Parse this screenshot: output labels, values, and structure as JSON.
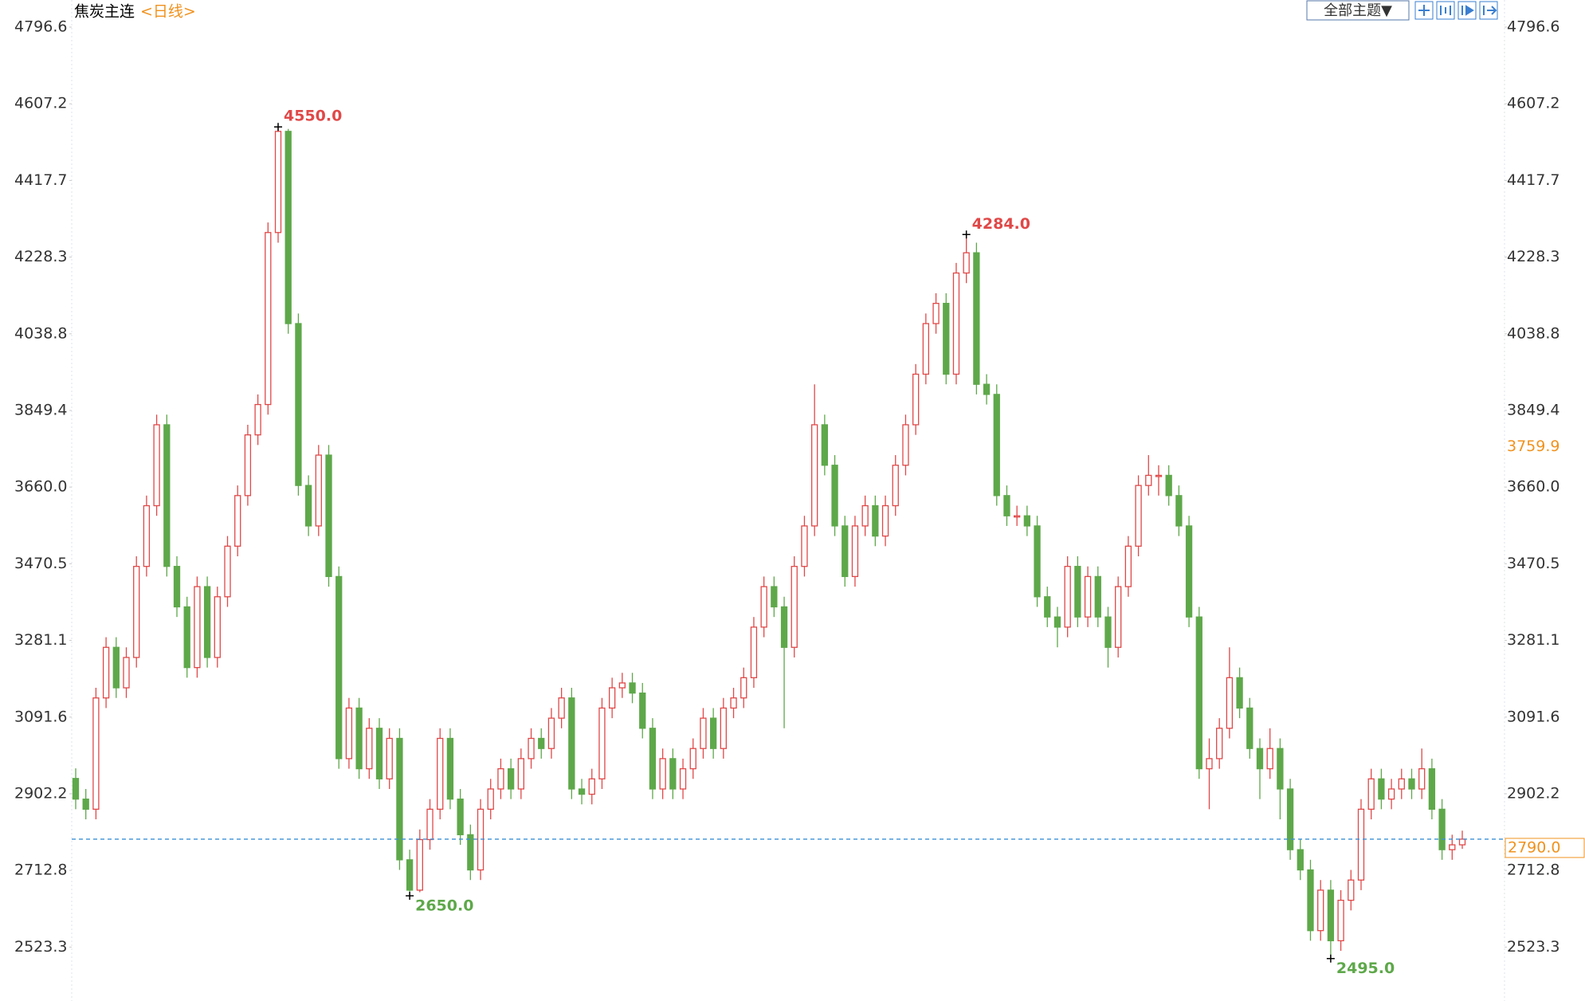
{
  "chart_data": {
    "type": "candlestick",
    "title": "焦炭主连",
    "subtitle": "<日线>",
    "theme_button": "全部主题▼",
    "up_color": "#e04848",
    "down_color": "#5ea84a",
    "price_line_color": "#3a8fd6",
    "label_color": "#f0921e",
    "ylim": [
      2390.1,
      4863.6
    ],
    "yticks": [
      4796.6,
      4607.2,
      4417.7,
      4228.3,
      4038.8,
      3849.4,
      {
        "value": 3660.0,
        "label": "3660.0"
      },
      3470.5,
      3281.1,
      3091.6,
      2902.2,
      2712.8,
      2523.3
    ],
    "current_price": {
      "value": 2790.0,
      "label": "2790.0"
    },
    "reference_price": 3759.9,
    "annotations": [
      {
        "value": 4550.0,
        "label": "4550.0"
      },
      {
        "value": 4284.0,
        "label": "4284.0"
      },
      {
        "value": 2650.0,
        "label": "2650.0"
      },
      {
        "value": 2495.0,
        "label": "2495.0"
      }
    ],
    "candles": [
      [
        2940,
        2965,
        2864,
        2889
      ],
      [
        2889,
        2914,
        2839,
        2864
      ],
      [
        2864,
        3164,
        2839,
        3139
      ],
      [
        3139,
        3289,
        3114,
        3264
      ],
      [
        3264,
        3289,
        3139,
        3164
      ],
      [
        3164,
        3264,
        3139,
        3239
      ],
      [
        3239,
        3489,
        3214,
        3464
      ],
      [
        3464,
        3639,
        3439,
        3614
      ],
      [
        3614,
        3839,
        3589,
        3814
      ],
      [
        3814,
        3839,
        3439,
        3464
      ],
      [
        3464,
        3489,
        3339,
        3364
      ],
      [
        3364,
        3389,
        3189,
        3214
      ],
      [
        3214,
        3439,
        3189,
        3414
      ],
      [
        3414,
        3439,
        3214,
        3239
      ],
      [
        3239,
        3414,
        3214,
        3389
      ],
      [
        3389,
        3539,
        3364,
        3514
      ],
      [
        3514,
        3664,
        3489,
        3639
      ],
      [
        3639,
        3814,
        3614,
        3789
      ],
      [
        3789,
        3889,
        3764,
        3864
      ],
      [
        3864,
        4314,
        3839,
        4289
      ],
      [
        4289,
        4550,
        4264,
        4539
      ],
      [
        4539,
        4545,
        4039,
        4064
      ],
      [
        4064,
        4089,
        3639,
        3664
      ],
      [
        3664,
        3689,
        3539,
        3564
      ],
      [
        3564,
        3764,
        3539,
        3739
      ],
      [
        3739,
        3764,
        3414,
        3439
      ],
      [
        3439,
        3464,
        2964,
        2989
      ],
      [
        2989,
        3139,
        2964,
        3114
      ],
      [
        3114,
        3139,
        2939,
        2964
      ],
      [
        2964,
        3089,
        2939,
        3064
      ],
      [
        3064,
        3089,
        2914,
        2939
      ],
      [
        2939,
        3064,
        2914,
        3039
      ],
      [
        3039,
        3064,
        2714,
        2739
      ],
      [
        2739,
        2764,
        2650,
        2664
      ],
      [
        2664,
        2814,
        2659,
        2789
      ],
      [
        2789,
        2889,
        2764,
        2864
      ],
      [
        2864,
        3064,
        2839,
        3039
      ],
      [
        3039,
        3064,
        2864,
        2889
      ],
      [
        2889,
        2914,
        2776,
        2801
      ],
      [
        2801,
        2826,
        2689,
        2714
      ],
      [
        2714,
        2889,
        2689,
        2864
      ],
      [
        2864,
        2939,
        2839,
        2914
      ],
      [
        2914,
        2989,
        2889,
        2964
      ],
      [
        2964,
        2989,
        2889,
        2914
      ],
      [
        2914,
        3014,
        2889,
        2989
      ],
      [
        2989,
        3064,
        2964,
        3039
      ],
      [
        3039,
        3064,
        2989,
        3014
      ],
      [
        3014,
        3114,
        2989,
        3089
      ],
      [
        3089,
        3164,
        3064,
        3139
      ],
      [
        3139,
        3164,
        2889,
        2914
      ],
      [
        2914,
        2939,
        2876,
        2901
      ],
      [
        2901,
        2964,
        2876,
        2939
      ],
      [
        2939,
        3139,
        2914,
        3114
      ],
      [
        3114,
        3189,
        3089,
        3164
      ],
      [
        3164,
        3201,
        3139,
        3176
      ],
      [
        3176,
        3201,
        3126,
        3151
      ],
      [
        3151,
        3176,
        3039,
        3064
      ],
      [
        3064,
        3089,
        2889,
        2914
      ],
      [
        2914,
        3014,
        2889,
        2989
      ],
      [
        2989,
        3014,
        2889,
        2914
      ],
      [
        2914,
        2989,
        2889,
        2964
      ],
      [
        2964,
        3039,
        2939,
        3014
      ],
      [
        3014,
        3114,
        2989,
        3089
      ],
      [
        3089,
        3114,
        2989,
        3014
      ],
      [
        3014,
        3139,
        2989,
        3114
      ],
      [
        3114,
        3164,
        3089,
        3139
      ],
      [
        3139,
        3214,
        3114,
        3189
      ],
      [
        3189,
        3339,
        3164,
        3314
      ],
      [
        3314,
        3439,
        3289,
        3414
      ],
      [
        3414,
        3439,
        3339,
        3364
      ],
      [
        3364,
        3389,
        3064,
        3264
      ],
      [
        3264,
        3489,
        3239,
        3464
      ],
      [
        3464,
        3589,
        3439,
        3564
      ],
      [
        3564,
        3914,
        3539,
        3814
      ],
      [
        3814,
        3839,
        3689,
        3714
      ],
      [
        3714,
        3739,
        3539,
        3564
      ],
      [
        3564,
        3589,
        3414,
        3439
      ],
      [
        3439,
        3589,
        3414,
        3564
      ],
      [
        3564,
        3639,
        3539,
        3614
      ],
      [
        3614,
        3639,
        3514,
        3539
      ],
      [
        3539,
        3639,
        3514,
        3614
      ],
      [
        3614,
        3739,
        3589,
        3714
      ],
      [
        3714,
        3839,
        3689,
        3814
      ],
      [
        3814,
        3964,
        3789,
        3939
      ],
      [
        3939,
        4089,
        3914,
        4064
      ],
      [
        4064,
        4139,
        4039,
        4114
      ],
      [
        4114,
        4139,
        3914,
        3939
      ],
      [
        3939,
        4214,
        3914,
        4189
      ],
      [
        4189,
        4284,
        4164,
        4239
      ],
      [
        4239,
        4264,
        3889,
        3914
      ],
      [
        3914,
        3939,
        3864,
        3889
      ],
      [
        3889,
        3914,
        3614,
        3639
      ],
      [
        3639,
        3664,
        3564,
        3589
      ],
      [
        3589,
        3614,
        3564,
        3589
      ],
      [
        3589,
        3614,
        3539,
        3564
      ],
      [
        3564,
        3589,
        3364,
        3389
      ],
      [
        3389,
        3414,
        3314,
        3339
      ],
      [
        3339,
        3364,
        3264,
        3314
      ],
      [
        3314,
        3489,
        3289,
        3464
      ],
      [
        3464,
        3489,
        3314,
        3339
      ],
      [
        3339,
        3464,
        3314,
        3439
      ],
      [
        3439,
        3464,
        3314,
        3339
      ],
      [
        3339,
        3364,
        3214,
        3264
      ],
      [
        3264,
        3439,
        3239,
        3414
      ],
      [
        3414,
        3539,
        3389,
        3514
      ],
      [
        3514,
        3689,
        3489,
        3664
      ],
      [
        3664,
        3739,
        3639,
        3689
      ],
      [
        3689,
        3714,
        3639,
        3689
      ],
      [
        3689,
        3714,
        3614,
        3639
      ],
      [
        3639,
        3664,
        3539,
        3564
      ],
      [
        3564,
        3589,
        3314,
        3339
      ],
      [
        3339,
        3364,
        2939,
        2964
      ],
      [
        2964,
        3039,
        2864,
        2989
      ],
      [
        2989,
        3089,
        2964,
        3064
      ],
      [
        3064,
        3264,
        3039,
        3189
      ],
      [
        3189,
        3214,
        3089,
        3114
      ],
      [
        3114,
        3139,
        2989,
        3014
      ],
      [
        3014,
        3039,
        2889,
        2964
      ],
      [
        2964,
        3064,
        2939,
        3014
      ],
      [
        3014,
        3039,
        2839,
        2914
      ],
      [
        2914,
        2939,
        2739,
        2764
      ],
      [
        2764,
        2789,
        2689,
        2714
      ],
      [
        2714,
        2739,
        2539,
        2564
      ],
      [
        2564,
        2689,
        2539,
        2664
      ],
      [
        2664,
        2689,
        2495,
        2539
      ],
      [
        2539,
        2664,
        2514,
        2639
      ],
      [
        2639,
        2714,
        2614,
        2689
      ],
      [
        2689,
        2889,
        2664,
        2864
      ],
      [
        2864,
        2964,
        2839,
        2939
      ],
      [
        2939,
        2964,
        2864,
        2889
      ],
      [
        2889,
        2939,
        2864,
        2914
      ],
      [
        2914,
        2964,
        2889,
        2939
      ],
      [
        2939,
        2964,
        2889,
        2914
      ],
      [
        2914,
        3014,
        2889,
        2964
      ],
      [
        2964,
        2989,
        2839,
        2864
      ],
      [
        2864,
        2889,
        2739,
        2764
      ],
      [
        2764,
        2801,
        2739,
        2776
      ],
      [
        2776,
        2811,
        2766,
        2790
      ]
    ]
  }
}
